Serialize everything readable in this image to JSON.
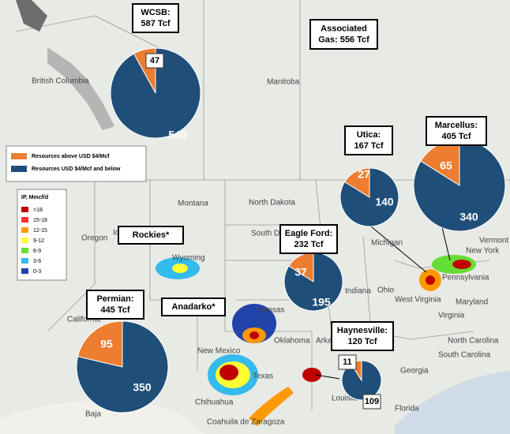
{
  "legend": {
    "items": [
      "Resources above USD $4/Mcf",
      "Resources USD $4/Mcf and below"
    ],
    "colors": [
      "#ed7d31",
      "#1f4e79"
    ]
  },
  "ip_legend": {
    "title": "IP, Mmcf/d",
    "items": [
      ">18",
      "15-18",
      "12-15",
      "9-12",
      "6-9",
      "3-6",
      "0-3"
    ],
    "colors": [
      "#c00000",
      "#ff3030",
      "#ff9900",
      "#ffff33",
      "#66dd33",
      "#33bbee",
      "#2244aa"
    ]
  },
  "plays": [
    {
      "label_lines": [
        "WCSB:",
        "587 Tcf"
      ],
      "values": [
        47,
        540
      ]
    },
    {
      "label_lines": [
        "Associated",
        "Gas: 556 Tcf"
      ]
    },
    {
      "label_lines": [
        "Utica:",
        "167 Tcf"
      ],
      "values": [
        27,
        140
      ]
    },
    {
      "label_lines": [
        "Marcellus:",
        "405 Tcf"
      ],
      "values": [
        65,
        340
      ]
    },
    {
      "label_lines": [
        "Eagle Ford:",
        "232 Tcf"
      ],
      "values": [
        37,
        195
      ]
    },
    {
      "label_lines": [
        "Permian:",
        "445 Tcf"
      ],
      "values": [
        95,
        350
      ]
    },
    {
      "label_lines": [
        "Haynesville:",
        "120 Tcf"
      ],
      "values": [
        11,
        109
      ]
    },
    {
      "label_lines": [
        "Rockies*"
      ]
    },
    {
      "label_lines": [
        "Anadarko*"
      ]
    }
  ],
  "map_labels": [
    "British Columbia",
    "Manitoba",
    "Montana",
    "North Dakota",
    "South Dakota",
    "Idaho",
    "Oregon",
    "Wyoming",
    "Kansas",
    "Oklahoma",
    "Texas",
    "New Mexico",
    "California",
    "Chihuahua",
    "Coahuila de Zaragoza",
    "Arkansas",
    "Louisiana",
    "Georgia",
    "South Carolina",
    "North Carolina",
    "Virginia",
    "West Virginia",
    "Pennsylvania",
    "New York",
    "Vermont",
    "Michigan",
    "Indiana",
    "Ohio",
    "Maryland",
    "Florida",
    "Baja"
  ]
}
